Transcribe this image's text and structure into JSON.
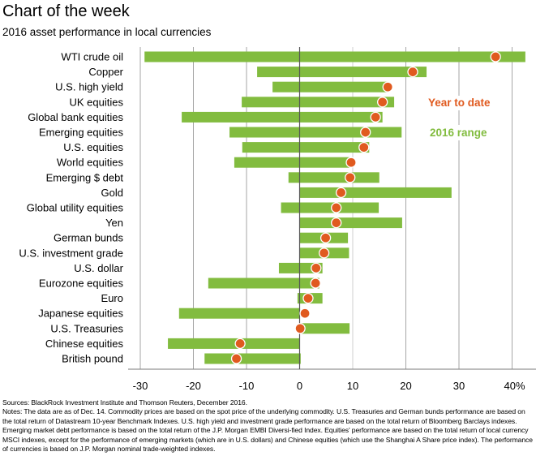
{
  "header": {
    "title": "Chart of the week",
    "subtitle": "2016 asset performance in local currencies"
  },
  "chart_data": {
    "type": "bar",
    "subtype": "floating-range-with-marker",
    "title": "Chart of the week",
    "subtitle": "2016 asset performance in local currencies",
    "xlabel": "",
    "ylabel": "",
    "xlim": [
      -30,
      42
    ],
    "x_ticks": [
      -30,
      -20,
      -10,
      0,
      10,
      20,
      30,
      40
    ],
    "x_tick_labels": [
      "-30",
      "-20",
      "-10",
      "0",
      "10",
      "20",
      "30",
      "40%"
    ],
    "grid": true,
    "legend": [
      {
        "name": "Year to date",
        "color": "#e05a1f",
        "placement": "right"
      },
      {
        "name": "2016 range",
        "color": "#82bc3f",
        "placement": "right"
      }
    ],
    "categories": [
      "WTI crude oil",
      "Copper",
      "U.S. high yield",
      "UK equities",
      "Global bank equities",
      "Emerging equities",
      "U.S. equities",
      "World equities",
      "Emerging $ debt",
      "Gold",
      "Global utility equities",
      "Yen",
      "German bunds",
      "U.S. investment grade",
      "U.S. dollar",
      "Eurozone equities",
      "Euro",
      "Japanese equities",
      "U.S. Treasuries",
      "Chinese equities",
      "British pound"
    ],
    "series": [
      {
        "name": "2016 range low",
        "values": [
          -29.2,
          -8.0,
          -5.1,
          -10.9,
          -22.2,
          -13.2,
          -10.8,
          -12.3,
          -2.1,
          0.0,
          -3.5,
          0.0,
          0.0,
          0.0,
          -3.9,
          -17.2,
          -0.4,
          -22.7,
          0.0,
          -24.8,
          -17.9
        ]
      },
      {
        "name": "2016 range high",
        "values": [
          42.5,
          23.9,
          16.6,
          17.8,
          15.6,
          19.2,
          13.1,
          9.4,
          15.0,
          28.6,
          14.9,
          19.3,
          9.1,
          9.3,
          4.3,
          3.7,
          4.3,
          0.0,
          9.4,
          0.0,
          0.2
        ]
      },
      {
        "name": "Year to date",
        "values": [
          36.9,
          21.3,
          16.6,
          15.6,
          14.3,
          12.4,
          12.1,
          9.7,
          9.5,
          7.8,
          6.9,
          6.9,
          4.9,
          4.6,
          3.1,
          3.0,
          1.6,
          1.0,
          0.1,
          -11.2,
          -11.9
        ]
      }
    ],
    "colors": {
      "range": "#82bc3f",
      "ytd": "#e05a1f",
      "grid": "#a6a6a6",
      "zero_line": "#555555"
    }
  },
  "footer": {
    "sources": "Sources: BlackRock Investment Institute and Thomson Reuters, December 2016.",
    "notes": "Notes: The data are as of Dec. 14. Commodity prices are based on the spot price of the underlying commodity. U.S. Treasuries and German bunds performance are based on the total return of Datastream 10-year Benchmark Indexes. U.S. high yield  and investment grade performance are based on the total return of Bloomberg Barclays indexes. Emerging market debt performance is based on the total return of the J.P. Morgan EMBI Diversi-fied Index. Equities' performance are based on the total return of local currency MSCI indexes, except for the performance of emerging markets (which are in U.S. dollars) and Chinese equities (which use the Shanghai A Share price index). The performance of currencies is based on J.P. Morgan nominal trade-weighted indexes."
  }
}
